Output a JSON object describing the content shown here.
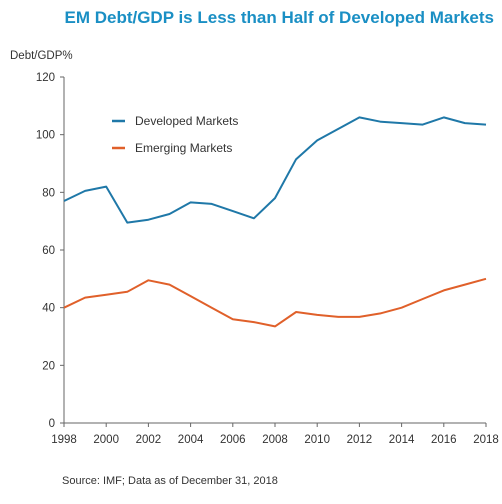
{
  "chart_data": {
    "type": "line",
    "title": "EM Debt/GDP is Less than Half of Developed Markets",
    "ylabel": "Debt/GDP%",
    "xlabel": "",
    "source": "Source: IMF; Data as of December 31, 2018",
    "ylim": [
      0,
      120
    ],
    "yticks": [
      0,
      20,
      40,
      60,
      80,
      100,
      120
    ],
    "xlim": [
      1998,
      2018
    ],
    "xticks": [
      1998,
      2000,
      2002,
      2004,
      2006,
      2008,
      2010,
      2012,
      2014,
      2016,
      2018
    ],
    "x": [
      1998,
      1999,
      2000,
      2001,
      2002,
      2003,
      2004,
      2005,
      2006,
      2007,
      2008,
      2009,
      2010,
      2011,
      2012,
      2013,
      2014,
      2015,
      2016,
      2017,
      2018
    ],
    "series": [
      {
        "name": "Developed Markets",
        "color": "#1f78a8",
        "values": [
          77,
          80.5,
          82,
          69.5,
          70.5,
          72.5,
          76.5,
          76,
          73.5,
          71,
          78,
          91.5,
          98,
          102,
          106,
          104.5,
          104,
          103.5,
          106,
          104,
          103.5
        ]
      },
      {
        "name": "Emerging Markets",
        "color": "#e0602a",
        "values": [
          40,
          43.5,
          44.5,
          45.5,
          49.5,
          48,
          44,
          40,
          36,
          35,
          33.5,
          38.5,
          37.5,
          36.8,
          36.8,
          38,
          40,
          43,
          46,
          48,
          50
        ]
      }
    ],
    "legend_position": "top-left",
    "grid": false
  }
}
